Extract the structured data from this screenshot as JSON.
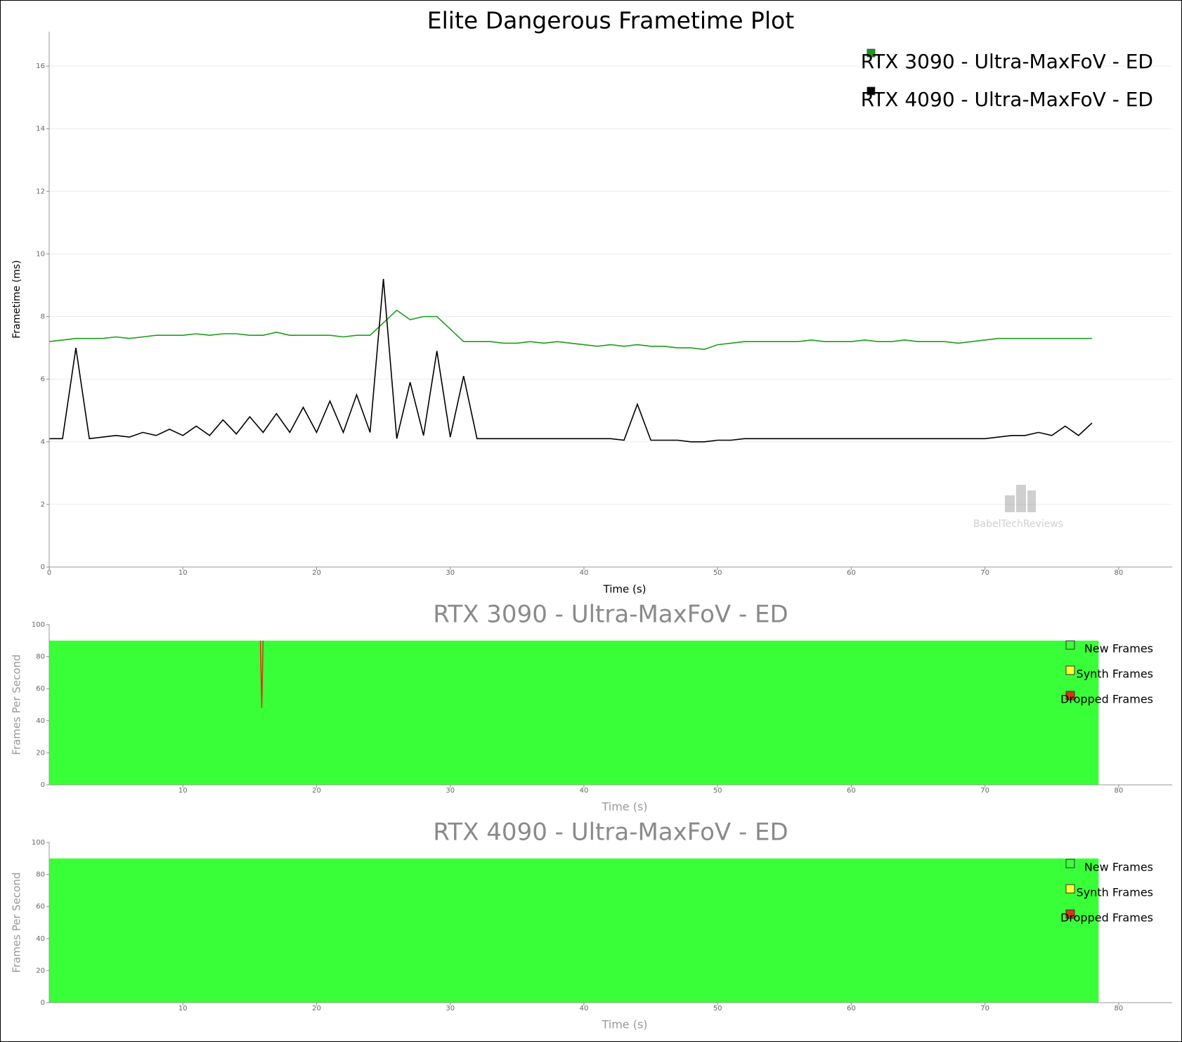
{
  "chart_data": [
    {
      "type": "line",
      "title": "Elite Dangerous Frametime Plot",
      "xlabel": "Time (s)",
      "ylabel": "Frametime (ms)",
      "watermark": "BabelTechReviews",
      "legend": "upper right",
      "grid": true,
      "xlim": [
        0,
        84
      ],
      "ylim": [
        0,
        17.1
      ],
      "xticks": [
        0,
        10,
        20,
        30,
        40,
        50,
        60,
        70,
        80
      ],
      "yticks": [
        0,
        2,
        4,
        6,
        8,
        10,
        12,
        14,
        16
      ],
      "x": [
        0,
        1,
        2,
        3,
        4,
        5,
        6,
        7,
        8,
        9,
        10,
        11,
        12,
        13,
        14,
        15,
        16,
        17,
        18,
        19,
        20,
        21,
        22,
        23,
        24,
        25,
        26,
        27,
        28,
        29,
        30,
        31,
        32,
        33,
        34,
        35,
        36,
        37,
        38,
        39,
        40,
        41,
        42,
        43,
        44,
        45,
        46,
        47,
        48,
        49,
        50,
        51,
        52,
        53,
        54,
        55,
        56,
        57,
        58,
        59,
        60,
        61,
        62,
        63,
        64,
        65,
        66,
        67,
        68,
        69,
        70,
        71,
        72,
        73,
        74,
        75,
        76,
        77,
        78
      ],
      "series": [
        {
          "name": "RTX 3090 - Ultra-MaxFoV - ED",
          "color": "#1a9e1a",
          "values": [
            7.2,
            7.25,
            7.3,
            7.3,
            7.3,
            7.35,
            7.3,
            7.35,
            7.4,
            7.4,
            7.4,
            7.45,
            7.4,
            7.45,
            7.45,
            7.4,
            7.4,
            7.5,
            7.4,
            7.4,
            7.4,
            7.4,
            7.35,
            7.4,
            7.4,
            7.8,
            8.2,
            7.9,
            8.0,
            8.0,
            7.6,
            7.2,
            7.2,
            7.2,
            7.15,
            7.15,
            7.2,
            7.15,
            7.2,
            7.15,
            7.1,
            7.05,
            7.1,
            7.05,
            7.1,
            7.05,
            7.05,
            7.0,
            7.0,
            6.95,
            7.1,
            7.15,
            7.2,
            7.2,
            7.2,
            7.2,
            7.2,
            7.25,
            7.2,
            7.2,
            7.2,
            7.25,
            7.2,
            7.2,
            7.25,
            7.2,
            7.2,
            7.2,
            7.15,
            7.2,
            7.25,
            7.3,
            7.3,
            7.3,
            7.3,
            7.3,
            7.3,
            7.3,
            7.3
          ]
        },
        {
          "name": "RTX 4090 - Ultra-MaxFoV - ED",
          "color": "#000000",
          "values": [
            4.1,
            4.1,
            7.0,
            4.1,
            4.15,
            4.2,
            4.15,
            4.3,
            4.2,
            4.4,
            4.2,
            4.5,
            4.2,
            4.7,
            4.25,
            4.8,
            4.3,
            4.9,
            4.3,
            5.1,
            4.3,
            5.3,
            4.3,
            5.5,
            4.3,
            9.2,
            4.1,
            5.9,
            4.2,
            6.9,
            4.15,
            6.1,
            4.1,
            4.1,
            4.1,
            4.1,
            4.1,
            4.1,
            4.1,
            4.1,
            4.1,
            4.1,
            4.1,
            4.05,
            5.2,
            4.05,
            4.05,
            4.05,
            4.0,
            4.0,
            4.05,
            4.05,
            4.1,
            4.1,
            4.1,
            4.1,
            4.1,
            4.1,
            4.1,
            4.1,
            4.1,
            4.1,
            4.1,
            4.1,
            4.1,
            4.1,
            4.1,
            4.1,
            4.1,
            4.1,
            4.1,
            4.15,
            4.2,
            4.2,
            4.3,
            4.2,
            4.5,
            4.2,
            4.6
          ]
        }
      ]
    },
    {
      "type": "area",
      "title": "RTX 3090 - Ultra-MaxFoV - ED",
      "xlabel": "Time (s)",
      "ylabel": "Frames Per Second",
      "legend": "upper right",
      "xlim": [
        0,
        84
      ],
      "ylim": [
        0,
        100
      ],
      "xticks": [
        10,
        20,
        30,
        40,
        50,
        60,
        70,
        80
      ],
      "yticks": [
        0,
        20,
        40,
        60,
        80,
        100
      ],
      "series": [
        {
          "name": "New Frames",
          "color": "#39ff39",
          "x": [
            0,
            78.5
          ],
          "values": [
            90,
            90
          ]
        },
        {
          "name": "Synth Frames",
          "color": "#ffff33",
          "x": [
            0,
            78.5
          ],
          "values": [
            0,
            0
          ]
        },
        {
          "name": "Dropped Frames",
          "color": "#dd3311",
          "x": [
            15.8,
            15.9,
            16.0
          ],
          "values": [
            0,
            42,
            0
          ]
        }
      ]
    },
    {
      "type": "area",
      "title": "RTX 4090 - Ultra-MaxFoV - ED",
      "xlabel": "Time (s)",
      "ylabel": "Frames Per Second",
      "legend": "upper right",
      "xlim": [
        0,
        84
      ],
      "ylim": [
        0,
        100
      ],
      "xticks": [
        10,
        20,
        30,
        40,
        50,
        60,
        70,
        80
      ],
      "yticks": [
        0,
        20,
        40,
        60,
        80,
        100
      ],
      "series": [
        {
          "name": "New Frames",
          "color": "#39ff39",
          "x": [
            0,
            78.5
          ],
          "values": [
            90,
            90
          ]
        },
        {
          "name": "Synth Frames",
          "color": "#ffff33",
          "x": [
            0,
            78.5
          ],
          "values": [
            0,
            0
          ]
        },
        {
          "name": "Dropped Frames",
          "color": "#dd3311",
          "x": [
            0,
            78.5
          ],
          "values": [
            0,
            0
          ]
        }
      ]
    }
  ]
}
